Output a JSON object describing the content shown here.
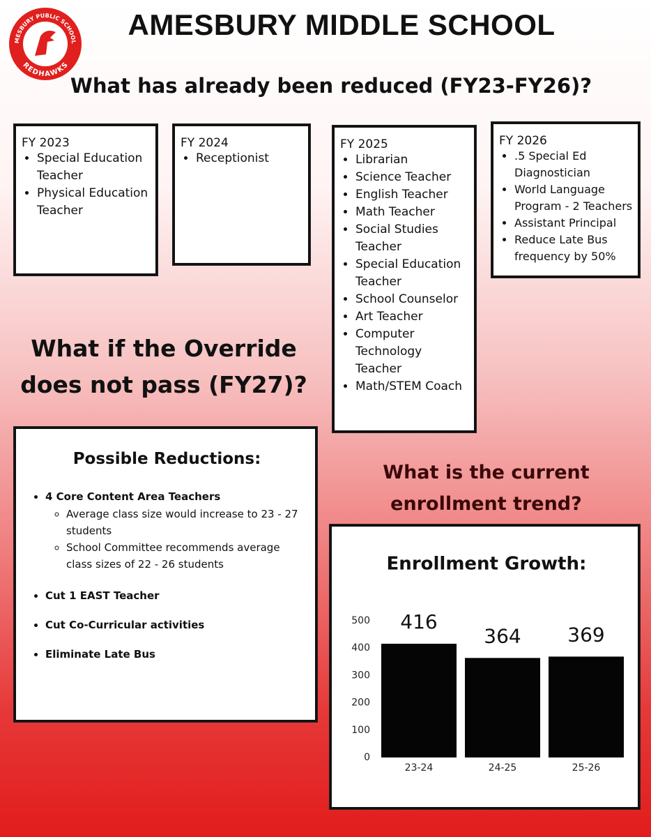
{
  "logo": {
    "top_text": "AMESBURY PUBLIC SCHOOLS",
    "bottom_text": "REDHAWKS"
  },
  "header": {
    "title": "AMESBURY MIDDLE SCHOOL",
    "subtitle": "What has already been reduced (FY23-FY26)?"
  },
  "reductions": [
    {
      "year": "FY 2023",
      "items": [
        "Special Education Teacher",
        "Physical Education Teacher"
      ]
    },
    {
      "year": "FY 2024",
      "items": [
        "Receptionist"
      ]
    },
    {
      "year": "FY 2025",
      "items": [
        "Librarian",
        "Science Teacher",
        "English Teacher",
        "Math Teacher",
        "Social Studies Teacher",
        "Special Education Teacher",
        "School Counselor",
        "Art Teacher",
        "Computer Technology Teacher",
        "Math/STEM Coach"
      ]
    },
    {
      "year": "FY 2026",
      "items": [
        ".5 Special Ed Diagnostician",
        "World Language Program - 2 Teachers",
        "Assistant Principal",
        "Reduce Late Bus frequency by 50%"
      ]
    }
  ],
  "override": {
    "heading": "What if the Override does not pass (FY27)?",
    "box_title": "Possible Reductions:",
    "items": [
      {
        "text": "4 Core Content Area Teachers",
        "subitems": [
          "Average class size would increase to 23 - 27 students",
          "School Committee recommends average class sizes of 22 - 26 students"
        ]
      },
      {
        "text": "Cut 1 EAST Teacher"
      },
      {
        "text": "Cut Co-Curricular activities"
      },
      {
        "text": "Eliminate Late Bus"
      }
    ]
  },
  "enrollment": {
    "heading": "What is the current enrollment trend?"
  },
  "chart_data": {
    "type": "bar",
    "title": "Enrollment Growth:",
    "categories": [
      "23-24",
      "24-25",
      "25-26"
    ],
    "values": [
      416,
      364,
      369
    ],
    "color": "#050505",
    "ylim": [
      0,
      500
    ],
    "yticks": [
      0,
      100,
      200,
      300,
      400,
      500
    ],
    "grid": false
  }
}
